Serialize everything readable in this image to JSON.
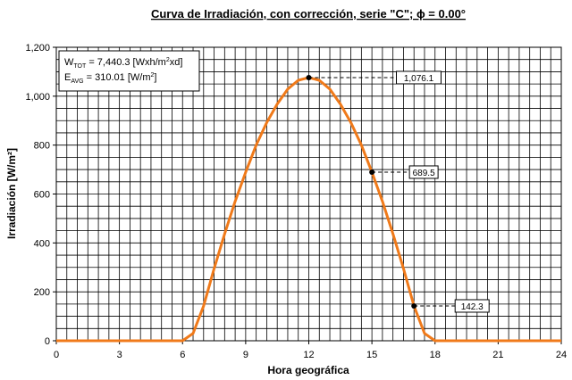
{
  "chart_data": {
    "type": "line",
    "title": "Curva de Irradiación, con corrección, serie \"C\"; ϕ = 0.00°",
    "x_label": "Hora geográfica",
    "y_label": "Irradiación [W/m²]",
    "x": [
      0,
      6,
      6.5,
      7,
      7.5,
      8,
      8.5,
      9,
      9.5,
      10,
      10.5,
      11,
      11.5,
      12,
      12.5,
      13,
      13.5,
      14,
      14.5,
      15,
      15.5,
      16,
      16.5,
      17,
      17.5,
      18,
      24
    ],
    "series": [
      {
        "name": "Irradiación",
        "color": "#f07a1a",
        "values": [
          0,
          0,
          30,
          142,
          295,
          437,
          570,
          689,
          800,
          892,
          968,
          1029,
          1065,
          1076.1,
          1065,
          1029,
          968,
          892,
          800,
          689.5,
          570,
          437,
          295,
          142.3,
          30,
          0,
          0
        ]
      }
    ],
    "annotations": [
      {
        "x": 12,
        "value": 1076.1,
        "label": "1,076.1"
      },
      {
        "x": 15,
        "value": 689.5,
        "label": "689.5"
      },
      {
        "x": 17,
        "value": 142.3,
        "label": "142.3"
      }
    ],
    "info_box": [
      [
        {
          "t": "W"
        },
        {
          "t": "TOT",
          "s": "sub"
        },
        {
          "t": " = 7,440.3 [Wxh/m"
        },
        {
          "t": "2",
          "s": "sup"
        },
        {
          "t": "xd]"
        }
      ],
      [
        {
          "t": "E"
        },
        {
          "t": "AVG",
          "s": "sub"
        },
        {
          "t": " = 310.01 [W/m"
        },
        {
          "t": "2",
          "s": "sup"
        },
        {
          "t": "]"
        }
      ]
    ],
    "xlim": [
      0,
      24
    ],
    "xticks": [
      0,
      3,
      6,
      9,
      12,
      15,
      18,
      21,
      24
    ],
    "ylim": [
      0,
      1200
    ],
    "yticks": [
      0,
      200,
      400,
      600,
      800,
      {
        "value": 1000,
        "label": "1,000"
      },
      {
        "value": 1200,
        "label": "1,200"
      }
    ],
    "grid": true,
    "minor_grid": {
      "x": 0.5,
      "y": 50
    }
  }
}
